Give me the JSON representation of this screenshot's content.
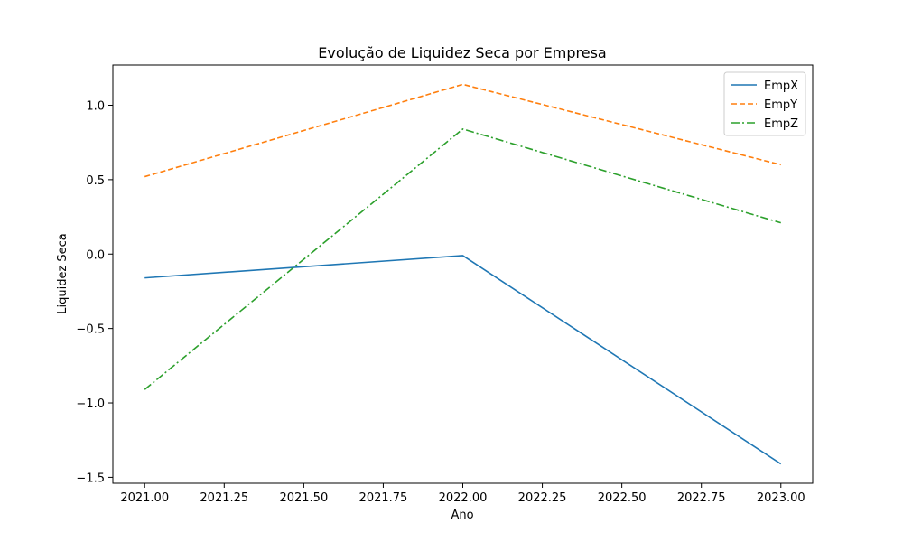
{
  "chart_data": {
    "type": "line",
    "title": "Evolução de Liquidez Seca por Empresa",
    "xlabel": "Ano",
    "ylabel": "Liquidez Seca",
    "xlim": [
      2020.9,
      2023.1
    ],
    "ylim": [
      -1.54,
      1.27
    ],
    "xticks": [
      2021.0,
      2021.25,
      2021.5,
      2021.75,
      2022.0,
      2022.25,
      2022.5,
      2022.75,
      2023.0
    ],
    "xtick_labels": [
      "2021.00",
      "2021.25",
      "2021.50",
      "2021.75",
      "2022.00",
      "2022.25",
      "2022.50",
      "2022.75",
      "2023.00"
    ],
    "yticks": [
      -1.5,
      -1.0,
      -0.5,
      0.0,
      0.5,
      1.0
    ],
    "ytick_labels": [
      "−1.5",
      "−1.0",
      "−0.5",
      "0.0",
      "0.5",
      "1.0"
    ],
    "grid": false,
    "legend_position": "top-right",
    "x": [
      2021,
      2022,
      2023
    ],
    "series": [
      {
        "name": "EmpX",
        "values": [
          -0.16,
          -0.01,
          -1.41
        ],
        "color": "#1f77b4",
        "linestyle": "solid"
      },
      {
        "name": "EmpY",
        "values": [
          0.52,
          1.14,
          0.6
        ],
        "color": "#ff7f0e",
        "linestyle": "dashed"
      },
      {
        "name": "EmpZ",
        "values": [
          -0.91,
          0.84,
          0.21
        ],
        "color": "#2ca02c",
        "linestyle": "dashdot"
      }
    ]
  }
}
